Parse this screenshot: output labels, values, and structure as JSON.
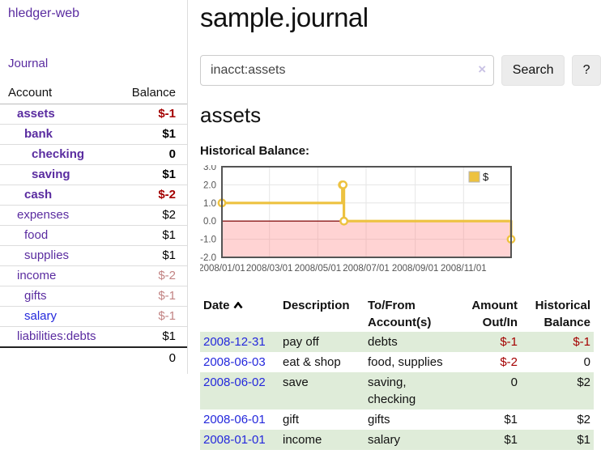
{
  "app": {
    "brand": "hledger-web"
  },
  "sidebar": {
    "journal_link": "Journal",
    "accounts_table": {
      "header_account": "Account",
      "header_balance": "Balance",
      "accounts": [
        {
          "name": "assets",
          "balance": "$-1",
          "depth": 0,
          "bold": true,
          "balance_style": "neg-strong"
        },
        {
          "name": "bank",
          "balance": "$1",
          "depth": 1,
          "bold": true,
          "balance_style": "pos"
        },
        {
          "name": "checking",
          "balance": "0",
          "depth": 2,
          "bold": true,
          "balance_style": "pos"
        },
        {
          "name": "saving",
          "balance": "$1",
          "depth": 2,
          "bold": true,
          "balance_style": "pos"
        },
        {
          "name": "cash",
          "balance": "$-2",
          "depth": 1,
          "bold": true,
          "balance_style": "neg-strong"
        },
        {
          "name": "expenses",
          "balance": "$2",
          "depth": 0,
          "bold": false,
          "balance_style": "pos"
        },
        {
          "name": "food",
          "balance": "$1",
          "depth": 1,
          "bold": false,
          "balance_style": "pos"
        },
        {
          "name": "supplies",
          "balance": "$1",
          "depth": 1,
          "bold": false,
          "balance_style": "pos"
        },
        {
          "name": "income",
          "balance": "$-2",
          "depth": 0,
          "bold": false,
          "balance_style": "neg-soft"
        },
        {
          "name": "gifts",
          "balance": "$-1",
          "depth": 1,
          "bold": false,
          "balance_style": "neg-soft"
        },
        {
          "name": "salary",
          "balance": "$-1",
          "depth": 1,
          "bold": false,
          "balance_style": "neg-soft",
          "link_style": "blue"
        },
        {
          "name": "liabilities:debts",
          "balance": "$1",
          "depth": 0,
          "bold": false,
          "balance_style": "pos"
        }
      ],
      "total": "0"
    }
  },
  "main": {
    "title": "sample.journal",
    "search": {
      "value": "inacct:assets",
      "clear_icon": "×",
      "search_button": "Search",
      "help_button": "?"
    },
    "account_heading": "assets",
    "chart_label": "Historical Balance:"
  },
  "chart_data": {
    "type": "line",
    "title": "Historical Balance",
    "step": true,
    "series": [
      {
        "name": "$",
        "color": "#edc240",
        "points": [
          {
            "date": "2008-01-01",
            "value": 1
          },
          {
            "date": "2008-06-01",
            "value": 2
          },
          {
            "date": "2008-06-02",
            "value": 2
          },
          {
            "date": "2008-06-03",
            "value": 0
          },
          {
            "date": "2008-12-31",
            "value": -1
          }
        ]
      }
    ],
    "xlim": [
      "2008-01-01",
      "2008-12-31"
    ],
    "ylim": [
      -2,
      3
    ],
    "yticks": [
      3.0,
      2.0,
      1.0,
      0.0,
      -1.0,
      -2.0
    ],
    "xticks": [
      {
        "label": "2008/01/01",
        "date": "2008-01-01"
      },
      {
        "label": "2008/03/01",
        "date": "2008-03-01"
      },
      {
        "label": "2008/05/01",
        "date": "2008-05-01"
      },
      {
        "label": "2008/07/01",
        "date": "2008-07-01"
      },
      {
        "label": "2008/09/01",
        "date": "2008-09-01"
      },
      {
        "label": "2008/11/01",
        "date": "2008-11-01"
      }
    ],
    "grid": true,
    "legend": {
      "label": "$",
      "position": "top-right"
    },
    "colors": {
      "line": "#edc240",
      "marker_fill": "#ffffff",
      "zero_line": "#8b1a1a",
      "negative_region": "rgba(255,130,130,0.35)",
      "gridline": "#e6e6e6",
      "frame": "#545454",
      "tick_text": "#545454"
    }
  },
  "register": {
    "headers": [
      "Date",
      "Description",
      "To/From Account(s)",
      "Amount Out/In",
      "Historical Balance"
    ],
    "sort_icon": "chevron-up",
    "rows": [
      {
        "date": "2008-12-31",
        "description": "pay off",
        "accounts": "debts",
        "amount": "$-1",
        "amount_negative": true,
        "balance": "$-1",
        "balance_negative": true
      },
      {
        "date": "2008-06-03",
        "description": "eat & shop",
        "accounts": "food, supplies",
        "amount": "$-2",
        "amount_negative": true,
        "balance": "0",
        "balance_negative": false
      },
      {
        "date": "2008-06-02",
        "description": "save",
        "accounts": "saving, checking",
        "amount": "0",
        "amount_negative": false,
        "balance": "$2",
        "balance_negative": false
      },
      {
        "date": "2008-06-01",
        "description": "gift",
        "accounts": "gifts",
        "amount": "$1",
        "amount_negative": false,
        "balance": "$2",
        "balance_negative": false
      },
      {
        "date": "2008-01-01",
        "description": "income",
        "accounts": "salary",
        "amount": "$1",
        "amount_negative": false,
        "balance": "$1",
        "balance_negative": false
      }
    ]
  }
}
